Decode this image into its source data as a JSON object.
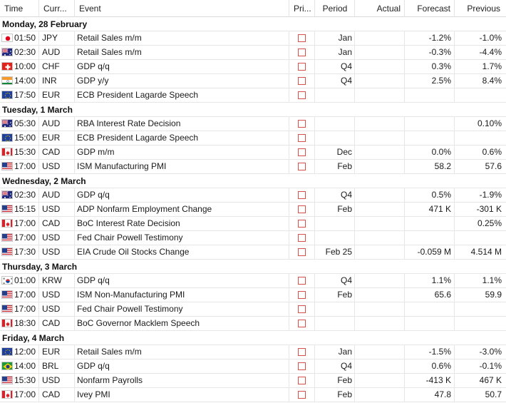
{
  "columns": {
    "time": "Time",
    "currency": "Curr...",
    "event": "Event",
    "priority": "Pri...",
    "period": "Period",
    "actual": "Actual",
    "forecast": "Forecast",
    "previous": "Previous"
  },
  "colors": {
    "checkbox_border": "#d8504c",
    "grid": "#e6e6e6"
  },
  "days": [
    {
      "label": "Monday, 28 February",
      "events": [
        {
          "flag": "jp",
          "time": "01:50",
          "currency": "JPY",
          "event": "Retail Sales m/m",
          "period": "Jan",
          "actual": "",
          "forecast": "-1.2%",
          "previous": "-1.0%"
        },
        {
          "flag": "au",
          "time": "02:30",
          "currency": "AUD",
          "event": "Retail Sales m/m",
          "period": "Jan",
          "actual": "",
          "forecast": "-0.3%",
          "previous": "-4.4%"
        },
        {
          "flag": "ch",
          "time": "10:00",
          "currency": "CHF",
          "event": "GDP q/q",
          "period": "Q4",
          "actual": "",
          "forecast": "0.3%",
          "previous": "1.7%"
        },
        {
          "flag": "in",
          "time": "14:00",
          "currency": "INR",
          "event": "GDP y/y",
          "period": "Q4",
          "actual": "",
          "forecast": "2.5%",
          "previous": "8.4%"
        },
        {
          "flag": "eu",
          "time": "17:50",
          "currency": "EUR",
          "event": "ECB President Lagarde Speech",
          "period": "",
          "actual": "",
          "forecast": "",
          "previous": ""
        }
      ]
    },
    {
      "label": "Tuesday, 1 March",
      "events": [
        {
          "flag": "au",
          "time": "05:30",
          "currency": "AUD",
          "event": "RBA Interest Rate Decision",
          "period": "",
          "actual": "",
          "forecast": "",
          "previous": "0.10%"
        },
        {
          "flag": "eu",
          "time": "15:00",
          "currency": "EUR",
          "event": "ECB President Lagarde Speech",
          "period": "",
          "actual": "",
          "forecast": "",
          "previous": ""
        },
        {
          "flag": "ca",
          "time": "15:30",
          "currency": "CAD",
          "event": "GDP m/m",
          "period": "Dec",
          "actual": "",
          "forecast": "0.0%",
          "previous": "0.6%"
        },
        {
          "flag": "us",
          "time": "17:00",
          "currency": "USD",
          "event": "ISM Manufacturing PMI",
          "period": "Feb",
          "actual": "",
          "forecast": "58.2",
          "previous": "57.6"
        }
      ]
    },
    {
      "label": "Wednesday, 2 March",
      "events": [
        {
          "flag": "au",
          "time": "02:30",
          "currency": "AUD",
          "event": "GDP q/q",
          "period": "Q4",
          "actual": "",
          "forecast": "0.5%",
          "previous": "-1.9%"
        },
        {
          "flag": "us",
          "time": "15:15",
          "currency": "USD",
          "event": "ADP Nonfarm Employment Change",
          "period": "Feb",
          "actual": "",
          "forecast": "471 K",
          "previous": "-301 K"
        },
        {
          "flag": "ca",
          "time": "17:00",
          "currency": "CAD",
          "event": "BoC Interest Rate Decision",
          "period": "",
          "actual": "",
          "forecast": "",
          "previous": "0.25%"
        },
        {
          "flag": "us",
          "time": "17:00",
          "currency": "USD",
          "event": "Fed Chair Powell Testimony",
          "period": "",
          "actual": "",
          "forecast": "",
          "previous": ""
        },
        {
          "flag": "us",
          "time": "17:30",
          "currency": "USD",
          "event": "EIA Crude Oil Stocks Change",
          "period": "Feb 25",
          "actual": "",
          "forecast": "-0.059 M",
          "previous": "4.514 M"
        }
      ]
    },
    {
      "label": "Thursday, 3 March",
      "events": [
        {
          "flag": "kr",
          "time": "01:00",
          "currency": "KRW",
          "event": "GDP q/q",
          "period": "Q4",
          "actual": "",
          "forecast": "1.1%",
          "previous": "1.1%"
        },
        {
          "flag": "us",
          "time": "17:00",
          "currency": "USD",
          "event": "ISM Non-Manufacturing PMI",
          "period": "Feb",
          "actual": "",
          "forecast": "65.6",
          "previous": "59.9"
        },
        {
          "flag": "us",
          "time": "17:00",
          "currency": "USD",
          "event": "Fed Chair Powell Testimony",
          "period": "",
          "actual": "",
          "forecast": "",
          "previous": ""
        },
        {
          "flag": "ca",
          "time": "18:30",
          "currency": "CAD",
          "event": "BoC Governor Macklem Speech",
          "period": "",
          "actual": "",
          "forecast": "",
          "previous": ""
        }
      ]
    },
    {
      "label": "Friday, 4 March",
      "events": [
        {
          "flag": "eu",
          "time": "12:00",
          "currency": "EUR",
          "event": "Retail Sales m/m",
          "period": "Jan",
          "actual": "",
          "forecast": "-1.5%",
          "previous": "-3.0%"
        },
        {
          "flag": "br",
          "time": "14:00",
          "currency": "BRL",
          "event": "GDP q/q",
          "period": "Q4",
          "actual": "",
          "forecast": "0.6%",
          "previous": "-0.1%"
        },
        {
          "flag": "us",
          "time": "15:30",
          "currency": "USD",
          "event": "Nonfarm Payrolls",
          "period": "Feb",
          "actual": "",
          "forecast": "-413 K",
          "previous": "467 K"
        },
        {
          "flag": "ca",
          "time": "17:00",
          "currency": "CAD",
          "event": "Ivey PMI",
          "period": "Feb",
          "actual": "",
          "forecast": "47.8",
          "previous": "50.7"
        }
      ]
    }
  ]
}
